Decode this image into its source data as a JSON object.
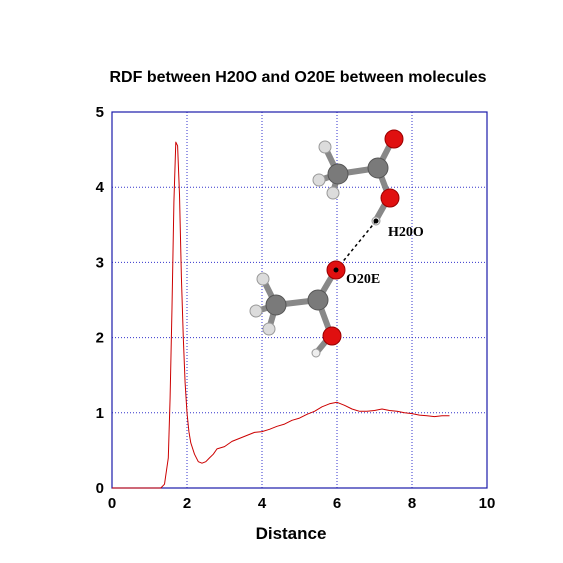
{
  "chart_data": {
    "type": "line",
    "title": "RDF between H20O and O20E between molecules",
    "xlabel": "Distance",
    "ylabel": "",
    "xlim": [
      0,
      10
    ],
    "ylim": [
      0,
      5
    ],
    "x_ticks": [
      "0",
      "2",
      "4",
      "6",
      "8",
      "10"
    ],
    "y_ticks": [
      "0",
      "1",
      "2",
      "3",
      "4",
      "5"
    ],
    "grid": true,
    "series": [
      {
        "color": "#cc0000",
        "x": [
          0.0,
          1.3,
          1.4,
          1.5,
          1.55,
          1.6,
          1.65,
          1.7,
          1.75,
          1.8,
          1.85,
          1.9,
          1.95,
          2.0,
          2.05,
          2.1,
          2.2,
          2.3,
          2.4,
          2.5,
          2.6,
          2.7,
          2.8,
          3.0,
          3.2,
          3.4,
          3.6,
          3.8,
          4.0,
          4.2,
          4.4,
          4.6,
          4.8,
          5.0,
          5.2,
          5.4,
          5.6,
          5.8,
          6.0,
          6.2,
          6.4,
          6.6,
          6.8,
          7.0,
          7.2,
          7.4,
          7.6,
          7.8,
          8.0,
          8.2,
          8.4,
          8.6,
          8.8,
          9.0
        ],
        "y": [
          0.0,
          0.0,
          0.05,
          0.4,
          1.2,
          2.4,
          3.8,
          4.6,
          4.55,
          3.9,
          2.8,
          2.0,
          1.4,
          1.0,
          0.75,
          0.6,
          0.45,
          0.35,
          0.33,
          0.35,
          0.4,
          0.45,
          0.52,
          0.55,
          0.62,
          0.66,
          0.7,
          0.74,
          0.75,
          0.78,
          0.82,
          0.85,
          0.9,
          0.93,
          0.98,
          1.02,
          1.08,
          1.12,
          1.14,
          1.1,
          1.05,
          1.02,
          1.02,
          1.03,
          1.05,
          1.03,
          1.02,
          1.0,
          0.99,
          0.97,
          0.96,
          0.95,
          0.96,
          0.96
        ]
      }
    ],
    "annotations": [
      "H20O",
      "O20E"
    ]
  }
}
